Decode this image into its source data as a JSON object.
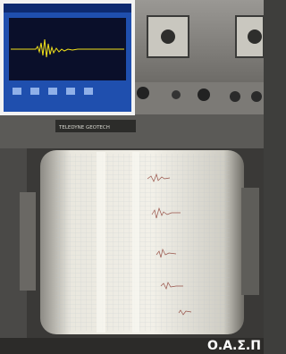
{
  "photo": {
    "plate_label": "TELEDYNE GEOTECH",
    "caption": "Ο.Α.Σ.Π"
  }
}
